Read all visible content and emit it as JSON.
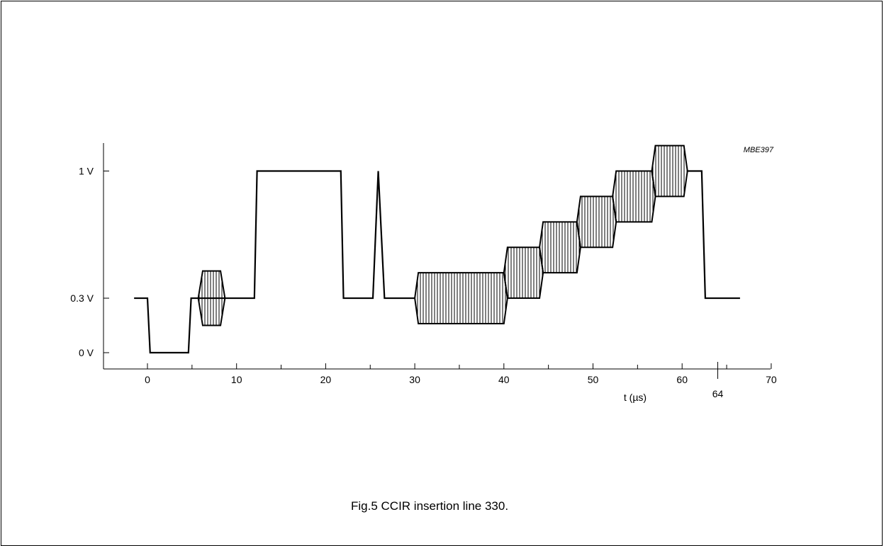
{
  "figure": {
    "ref_code": "MBE397",
    "caption": "Fig.5  CCIR insertion line 330."
  },
  "chart_data": {
    "type": "line",
    "title": "",
    "xlabel": "t (µs)",
    "ylabel": "",
    "xlim": [
      -5,
      70
    ],
    "ylim": [
      0,
      1.1
    ],
    "x_ticks": [
      0,
      10,
      20,
      30,
      40,
      50,
      60,
      70
    ],
    "x_minor_ticks": [
      5,
      15,
      25,
      35,
      45,
      55,
      65
    ],
    "x_special_tick": {
      "value": 64,
      "label": "64"
    },
    "y_ticks": [
      {
        "value": 0,
        "label": "0 V"
      },
      {
        "value": 0.3,
        "label": "0.3 V"
      },
      {
        "value": 1.0,
        "label": "1 V"
      }
    ],
    "grid": false,
    "legend": "none",
    "colors": {
      "line": "#000000",
      "hatch": "#000000",
      "background": "#ffffff"
    },
    "waveform": {
      "x": [
        -1.5,
        0.0,
        0.3,
        4.6,
        4.9,
        5.7,
        6.2,
        8.2,
        8.7,
        12.0,
        12.3,
        21.7,
        22.0,
        25.3,
        25.9,
        26.6,
        30.0
      ],
      "y": [
        0.3,
        0.3,
        0.0,
        0.0,
        0.3,
        0.3,
        0.3,
        0.3,
        0.3,
        0.3,
        1.0,
        1.0,
        0.3,
        0.3,
        1.0,
        0.3,
        0.3
      ]
    },
    "hatched_bursts": [
      {
        "name": "",
        "x_outer_start": 5.7,
        "x_start": 6.2,
        "x_end": 8.2,
        "x_outer_end": 8.7,
        "center": 0.3,
        "half_amplitude": 0.15
      },
      {
        "name": "",
        "x_outer_start": 30.0,
        "x_start": 30.4,
        "x_end": 40.0,
        "x_outer_end": 40.4,
        "center": 0.3,
        "half_amplitude": 0.14
      },
      {
        "name": "",
        "x_outer_start": 40.0,
        "x_start": 40.4,
        "x_end": 44.0,
        "x_outer_end": 44.4,
        "center": 0.44,
        "half_amplitude": 0.14
      },
      {
        "name": "",
        "x_outer_start": 44.0,
        "x_start": 44.4,
        "x_end": 48.2,
        "x_outer_end": 48.6,
        "center": 0.58,
        "half_amplitude": 0.14
      },
      {
        "name": "",
        "x_outer_start": 48.2,
        "x_start": 48.6,
        "x_end": 52.2,
        "x_outer_end": 52.6,
        "center": 0.72,
        "half_amplitude": 0.14
      },
      {
        "name": "",
        "x_outer_start": 52.2,
        "x_start": 52.6,
        "x_end": 56.6,
        "x_outer_end": 57.0,
        "center": 0.86,
        "half_amplitude": 0.14
      },
      {
        "name": "",
        "x_outer_start": 56.6,
        "x_start": 57.0,
        "x_end": 60.2,
        "x_outer_end": 60.6,
        "center": 1.0,
        "half_amplitude": 0.14
      }
    ],
    "tail": {
      "x": [
        60.6,
        62.2,
        62.6,
        66.5
      ],
      "y": [
        1.0,
        1.0,
        0.3,
        0.3
      ]
    }
  }
}
